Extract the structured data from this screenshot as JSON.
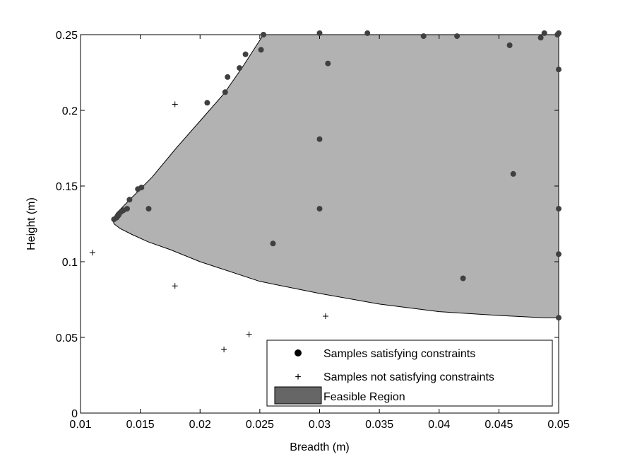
{
  "chart_data": {
    "type": "scatter",
    "title": "",
    "xlabel": "Breadth (m)",
    "ylabel": "Height (m)",
    "xlim": [
      0.01,
      0.05
    ],
    "ylim": [
      0,
      0.25
    ],
    "xticks": [
      0.01,
      0.015,
      0.02,
      0.025,
      0.03,
      0.035,
      0.04,
      0.045,
      0.05
    ],
    "xtick_labels": [
      "0.01",
      "0.015",
      "0.02",
      "0.025",
      "0.03",
      "0.035",
      "0.04",
      "0.045",
      "0.05"
    ],
    "yticks": [
      0,
      0.05,
      0.1,
      0.15,
      0.2,
      0.25
    ],
    "ytick_labels": [
      "0",
      "0.05",
      "0.1",
      "0.15",
      "0.2",
      "0.25"
    ],
    "grid": false,
    "legend_position": "bottom-right",
    "legend": [
      {
        "label": "Samples satisfying constraints",
        "marker": "dot"
      },
      {
        "label": "Samples not satisfying constraints",
        "marker": "plus"
      },
      {
        "label": "Feasible Region",
        "marker": "patch"
      }
    ],
    "colors": {
      "region_fill": "#b2b2b2",
      "legend_patch": "#666666",
      "satisfying": "#404040",
      "not_satisfying": "#000000"
    },
    "feasible_region": [
      [
        0.0253,
        0.25
      ],
      [
        0.05,
        0.25
      ],
      [
        0.05,
        0.063
      ],
      [
        0.0488,
        0.063
      ],
      [
        0.045,
        0.0645
      ],
      [
        0.04,
        0.067
      ],
      [
        0.035,
        0.072
      ],
      [
        0.03,
        0.079
      ],
      [
        0.025,
        0.087
      ],
      [
        0.02,
        0.1
      ],
      [
        0.0175,
        0.108
      ],
      [
        0.0157,
        0.113
      ],
      [
        0.0143,
        0.118
      ],
      [
        0.0133,
        0.122
      ],
      [
        0.0128,
        0.125
      ],
      [
        0.0127,
        0.128
      ],
      [
        0.013,
        0.132
      ],
      [
        0.014,
        0.14
      ],
      [
        0.016,
        0.156
      ],
      [
        0.018,
        0.175
      ],
      [
        0.02,
        0.193
      ],
      [
        0.022,
        0.211
      ],
      [
        0.0235,
        0.228
      ],
      [
        0.0253,
        0.25
      ]
    ],
    "series": [
      {
        "name": "Samples satisfying constraints",
        "points": [
          [
            0.0253,
            0.25
          ],
          [
            0.03,
            0.251
          ],
          [
            0.034,
            0.251
          ],
          [
            0.0387,
            0.249
          ],
          [
            0.0415,
            0.249
          ],
          [
            0.0459,
            0.243
          ],
          [
            0.0485,
            0.248
          ],
          [
            0.0488,
            0.251
          ],
          [
            0.0499,
            0.25
          ],
          [
            0.05,
            0.251
          ],
          [
            0.0251,
            0.24
          ],
          [
            0.0238,
            0.237
          ],
          [
            0.0233,
            0.228
          ],
          [
            0.0307,
            0.231
          ],
          [
            0.05,
            0.227
          ],
          [
            0.0223,
            0.222
          ],
          [
            0.0221,
            0.212
          ],
          [
            0.0206,
            0.205
          ],
          [
            0.03,
            0.181
          ],
          [
            0.0462,
            0.158
          ],
          [
            0.0151,
            0.149
          ],
          [
            0.0148,
            0.148
          ],
          [
            0.0141,
            0.141
          ],
          [
            0.0157,
            0.135
          ],
          [
            0.0139,
            0.135
          ],
          [
            0.0136,
            0.134
          ],
          [
            0.03,
            0.135
          ],
          [
            0.05,
            0.135
          ],
          [
            0.0134,
            0.133
          ],
          [
            0.0132,
            0.131
          ],
          [
            0.0131,
            0.13
          ],
          [
            0.013,
            0.129
          ],
          [
            0.0128,
            0.128
          ],
          [
            0.0261,
            0.112
          ],
          [
            0.05,
            0.105
          ],
          [
            0.042,
            0.089
          ],
          [
            0.05,
            0.063
          ]
        ]
      },
      {
        "name": "Samples not satisfying constraints",
        "points": [
          [
            0.0179,
            0.204
          ],
          [
            0.011,
            0.106
          ],
          [
            0.0179,
            0.084
          ],
          [
            0.0305,
            0.064
          ],
          [
            0.0241,
            0.052
          ],
          [
            0.022,
            0.042
          ]
        ]
      }
    ]
  }
}
